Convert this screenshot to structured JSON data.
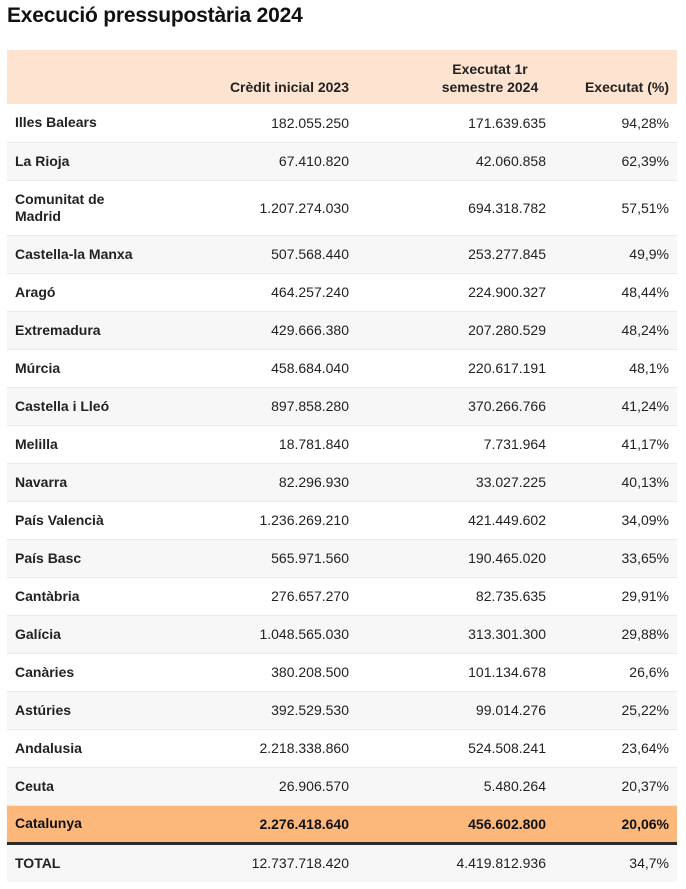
{
  "title": "Execució pressupostària 2024",
  "colors": {
    "header_bg": "#fde3d0",
    "highlight_bg": "#fcb87b",
    "row_alt_bg": "#f7f7f7"
  },
  "chart_data": {
    "type": "table",
    "title": "Execució pressupostària 2024",
    "columns": [
      "",
      "Crèdit inicial 2023",
      "Executat 1r semestre 2024",
      "Executat (%)"
    ],
    "rows": [
      {
        "name": "Illes Balears",
        "credit": "182.055.250",
        "executat": "171.639.635",
        "pct": "94,28%"
      },
      {
        "name": "La Rioja",
        "credit": "67.410.820",
        "executat": "42.060.858",
        "pct": "62,39%"
      },
      {
        "name": "Comunitat de Madrid",
        "credit": "1.207.274.030",
        "executat": "694.318.782",
        "pct": "57,51%"
      },
      {
        "name": "Castella-la Manxa",
        "credit": "507.568.440",
        "executat": "253.277.845",
        "pct": "49,9%"
      },
      {
        "name": "Aragó",
        "credit": "464.257.240",
        "executat": "224.900.327",
        "pct": "48,44%"
      },
      {
        "name": "Extremadura",
        "credit": "429.666.380",
        "executat": "207.280.529",
        "pct": "48,24%"
      },
      {
        "name": "Múrcia",
        "credit": "458.684.040",
        "executat": "220.617.191",
        "pct": "48,1%"
      },
      {
        "name": "Castella i Lleó",
        "credit": "897.858.280",
        "executat": "370.266.766",
        "pct": "41,24%"
      },
      {
        "name": "Melilla",
        "credit": "18.781.840",
        "executat": "7.731.964",
        "pct": "41,17%"
      },
      {
        "name": "Navarra",
        "credit": "82.296.930",
        "executat": "33.027.225",
        "pct": "40,13%"
      },
      {
        "name": "País Valencià",
        "credit": "1.236.269.210",
        "executat": "421.449.602",
        "pct": "34,09%"
      },
      {
        "name": "País Basc",
        "credit": "565.971.560",
        "executat": "190.465.020",
        "pct": "33,65%"
      },
      {
        "name": "Cantàbria",
        "credit": "276.657.270",
        "executat": "82.735.635",
        "pct": "29,91%"
      },
      {
        "name": "Galícia",
        "credit": "1.048.565.030",
        "executat": "313.301.300",
        "pct": "29,88%"
      },
      {
        "name": "Canàries",
        "credit": "380.208.500",
        "executat": "101.134.678",
        "pct": "26,6%"
      },
      {
        "name": "Astúries",
        "credit": "392.529.530",
        "executat": "99.014.276",
        "pct": "25,22%"
      },
      {
        "name": "Andalusia",
        "credit": "2.218.338.860",
        "executat": "524.508.241",
        "pct": "23,64%"
      },
      {
        "name": "Ceuta",
        "credit": "26.906.570",
        "executat": "5.480.264",
        "pct": "20,37%"
      },
      {
        "name": "Catalunya",
        "credit": "2.276.418.640",
        "executat": "456.602.800",
        "pct": "20,06%",
        "highlight": true
      }
    ],
    "total": {
      "name": "TOTAL",
      "credit": "12.737.718.420",
      "executat": "4.419.812.936",
      "pct": "34,7%"
    }
  }
}
